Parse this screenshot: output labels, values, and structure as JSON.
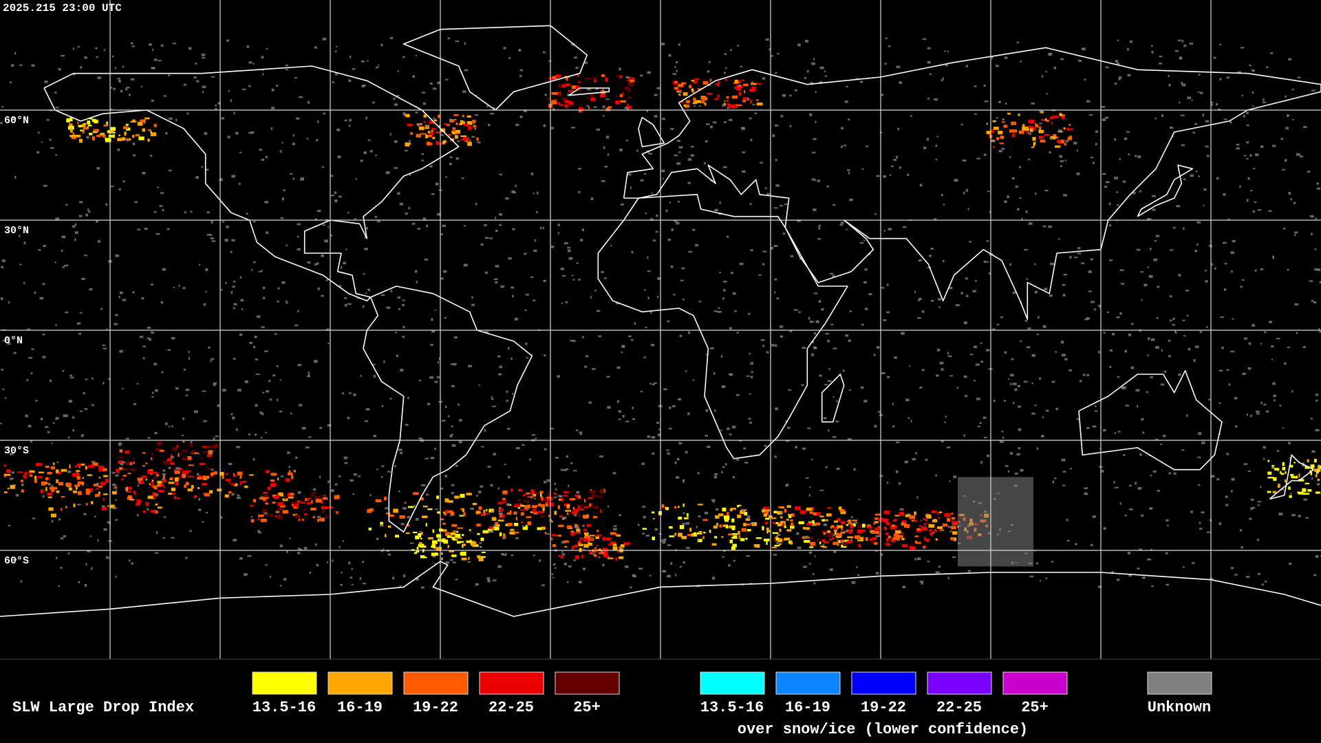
{
  "header": {
    "timestamp": "2025.215 23:00 UTC"
  },
  "map": {
    "lat_labels": [
      "60°N",
      "30°N",
      "0°N",
      "30°S",
      "60°S"
    ]
  },
  "legend": {
    "title": "SLW Large Drop Index",
    "items": [
      {
        "label": "13.5-16",
        "color": "#ffff00"
      },
      {
        "label": "16-19",
        "color": "#ffa500"
      },
      {
        "label": "19-22",
        "color": "#ff5a00"
      },
      {
        "label": "22-25",
        "color": "#ee0000"
      },
      {
        "label": "25+",
        "color": "#650000"
      }
    ],
    "ice_items": [
      {
        "label": "13.5-16",
        "color": "#00ffff"
      },
      {
        "label": "16-19",
        "color": "#0a84ff"
      },
      {
        "label": "19-22",
        "color": "#0000ff"
      },
      {
        "label": "22-25",
        "color": "#7a00ff"
      },
      {
        "label": "25+",
        "color": "#cc00cc"
      }
    ],
    "ice_note": "over snow/ice (lower confidence)",
    "unknown": {
      "label": "Unknown",
      "color": "#808080"
    }
  }
}
